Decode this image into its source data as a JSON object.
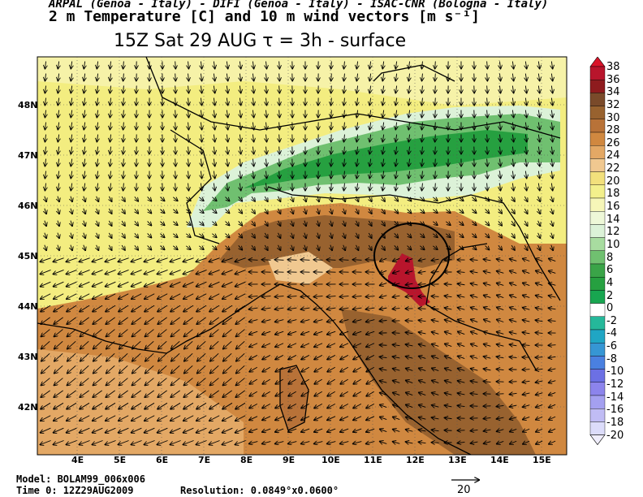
{
  "header": {
    "line1": "ARPAL (Genoa - Italy)  -  DIFI (Genoa - Italy)  -  ISAC-CNR (Bologna - Italy)",
    "line2": "2 m Temperature [C] and 10 m wind vectors [m s⁻¹]",
    "line3": "15Z Sat 29 AUG  τ = 3h  -  surface"
  },
  "map": {
    "lat_labels": [
      "48N",
      "47N",
      "46N",
      "45N",
      "44N",
      "43N",
      "42N"
    ],
    "lon_labels": [
      "4E",
      "5E",
      "6E",
      "7E",
      "8E",
      "9E",
      "10E",
      "11E",
      "12E",
      "13E",
      "14E",
      "15E"
    ],
    "highlight": "circle around northern Adriatic coast"
  },
  "colorbar": {
    "labels": [
      "38",
      "36",
      "34",
      "32",
      "30",
      "28",
      "26",
      "24",
      "22",
      "20",
      "18",
      "16",
      "14",
      "12",
      "10",
      "8",
      "6",
      "4",
      "2",
      "0",
      "-2",
      "-4",
      "-6",
      "-8",
      "-10",
      "-12",
      "-14",
      "-16",
      "-18",
      "-20"
    ],
    "colors": [
      "#d9142a",
      "#b8152c",
      "#8e1b1e",
      "#7a4a2a",
      "#98622f",
      "#b87238",
      "#d08840",
      "#e3a865",
      "#f0c890",
      "#f2e07c",
      "#f3f08c",
      "#f6f6b8",
      "#eef8d8",
      "#dcf2d8",
      "#a8dca0",
      "#70c070",
      "#3aa448",
      "#26a040",
      "#18a650",
      "#ffffff",
      "#25b89a",
      "#20a6c4",
      "#3696d4",
      "#4a80e0",
      "#6c70e4",
      "#8c84ec",
      "#a4a0f0",
      "#c0bcf4",
      "#dcdcfa"
    ]
  },
  "footer": {
    "model": "Model: BOLAM99_006x006",
    "time": "Time 0: 12Z29AUG2009",
    "resolution": "Resolution: 0.0849°x0.0600°",
    "vector_scale": "20"
  }
}
